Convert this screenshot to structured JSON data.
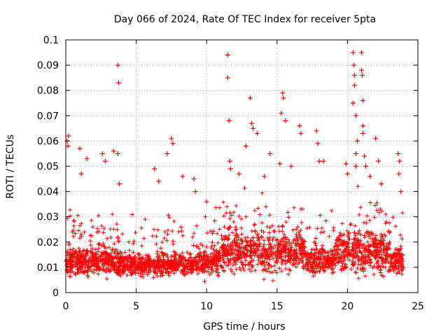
{
  "chart_data": {
    "type": "scatter",
    "title": "Day 066 of 2024, Rate Of TEC Index for receiver 5pta",
    "xlabel": "GPS time / hours",
    "ylabel": "ROTI / TECUs",
    "xlim": [
      0,
      25
    ],
    "ylim": [
      0,
      0.1
    ],
    "xticks": [
      0,
      5,
      10,
      15,
      20,
      25
    ],
    "xtick_labels": [
      "0",
      "5",
      "10",
      "15",
      "20",
      "25"
    ],
    "yticks": [
      0,
      0.01,
      0.02,
      0.03,
      0.04,
      0.05,
      0.06,
      0.07,
      0.08,
      0.09,
      0.1
    ],
    "ytick_labels": [
      "0",
      "0.01",
      "0.02",
      "0.03",
      "0.04",
      "0.05",
      "0.06",
      "0.07",
      "0.08",
      "0.09",
      "0.1"
    ],
    "grid": true,
    "marker": "+",
    "color": "#ff0000",
    "series": [
      {
        "name": "ROTI",
        "x_range": [
          0,
          24
        ],
        "baseline_band": [
          0.005,
          0.03
        ],
        "density": "very high",
        "highlights": [
          {
            "x": 0.1,
            "y": 0.06
          },
          {
            "x": 0.2,
            "y": 0.062
          },
          {
            "x": 0.15,
            "y": 0.058
          },
          {
            "x": 1.0,
            "y": 0.057
          },
          {
            "x": 1.5,
            "y": 0.053
          },
          {
            "x": 1.1,
            "y": 0.047
          },
          {
            "x": 2.6,
            "y": 0.055
          },
          {
            "x": 2.8,
            "y": 0.052
          },
          {
            "x": 3.4,
            "y": 0.056
          },
          {
            "x": 3.7,
            "y": 0.09
          },
          {
            "x": 3.75,
            "y": 0.083
          },
          {
            "x": 3.7,
            "y": 0.055
          },
          {
            "x": 3.8,
            "y": 0.043
          },
          {
            "x": 6.3,
            "y": 0.049
          },
          {
            "x": 6.6,
            "y": 0.044
          },
          {
            "x": 7.2,
            "y": 0.055
          },
          {
            "x": 7.5,
            "y": 0.061
          },
          {
            "x": 7.6,
            "y": 0.059
          },
          {
            "x": 8.3,
            "y": 0.046
          },
          {
            "x": 9.1,
            "y": 0.045
          },
          {
            "x": 9.2,
            "y": 0.04
          },
          {
            "x": 10.0,
            "y": 0.036
          },
          {
            "x": 11.5,
            "y": 0.094
          },
          {
            "x": 11.5,
            "y": 0.085
          },
          {
            "x": 11.6,
            "y": 0.068
          },
          {
            "x": 11.65,
            "y": 0.052
          },
          {
            "x": 11.7,
            "y": 0.049
          },
          {
            "x": 12.3,
            "y": 0.047
          },
          {
            "x": 12.8,
            "y": 0.058
          },
          {
            "x": 13.1,
            "y": 0.077
          },
          {
            "x": 13.2,
            "y": 0.067
          },
          {
            "x": 13.3,
            "y": 0.065
          },
          {
            "x": 13.6,
            "y": 0.063
          },
          {
            "x": 14.1,
            "y": 0.046
          },
          {
            "x": 14.5,
            "y": 0.055
          },
          {
            "x": 15.2,
            "y": 0.051
          },
          {
            "x": 15.3,
            "y": 0.071
          },
          {
            "x": 15.4,
            "y": 0.079
          },
          {
            "x": 15.45,
            "y": 0.077
          },
          {
            "x": 15.6,
            "y": 0.068
          },
          {
            "x": 16.0,
            "y": 0.05
          },
          {
            "x": 16.6,
            "y": 0.066
          },
          {
            "x": 16.7,
            "y": 0.063
          },
          {
            "x": 17.8,
            "y": 0.064
          },
          {
            "x": 17.9,
            "y": 0.059
          },
          {
            "x": 18.0,
            "y": 0.052
          },
          {
            "x": 18.3,
            "y": 0.052
          },
          {
            "x": 19.9,
            "y": 0.051
          },
          {
            "x": 20.0,
            "y": 0.047
          },
          {
            "x": 20.4,
            "y": 0.095
          },
          {
            "x": 20.45,
            "y": 0.09
          },
          {
            "x": 20.5,
            "y": 0.082
          },
          {
            "x": 20.5,
            "y": 0.086
          },
          {
            "x": 20.4,
            "y": 0.075
          },
          {
            "x": 20.6,
            "y": 0.07
          },
          {
            "x": 20.7,
            "y": 0.06
          },
          {
            "x": 20.6,
            "y": 0.055
          },
          {
            "x": 20.6,
            "y": 0.05
          },
          {
            "x": 21.0,
            "y": 0.095
          },
          {
            "x": 21.0,
            "y": 0.088
          },
          {
            "x": 21.05,
            "y": 0.086
          },
          {
            "x": 21.1,
            "y": 0.076
          },
          {
            "x": 21.1,
            "y": 0.066
          },
          {
            "x": 21.1,
            "y": 0.063
          },
          {
            "x": 21.2,
            "y": 0.054
          },
          {
            "x": 21.3,
            "y": 0.05
          },
          {
            "x": 21.6,
            "y": 0.046
          },
          {
            "x": 22.0,
            "y": 0.061
          },
          {
            "x": 22.2,
            "y": 0.052
          },
          {
            "x": 22.4,
            "y": 0.043
          },
          {
            "x": 23.6,
            "y": 0.055
          },
          {
            "x": 23.7,
            "y": 0.052
          },
          {
            "x": 23.65,
            "y": 0.047
          },
          {
            "x": 23.8,
            "y": 0.04
          }
        ]
      }
    ]
  }
}
